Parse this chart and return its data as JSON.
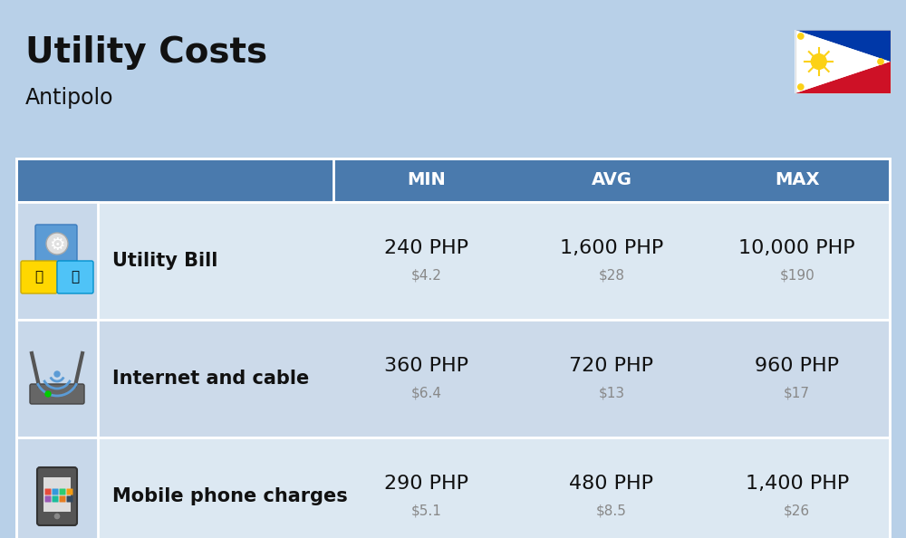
{
  "title": "Utility Costs",
  "subtitle": "Antipolo",
  "background_color": "#b8d0e8",
  "header_color": "#4a7aad",
  "header_text_color": "#ffffff",
  "row_colors": [
    "#dce8f2",
    "#ccdaea"
  ],
  "icon_col_color": "#c8d8ea",
  "columns": [
    "MIN",
    "AVG",
    "MAX"
  ],
  "rows": [
    {
      "label": "Utility Bill",
      "min_php": "240 PHP",
      "min_usd": "$4.2",
      "avg_php": "1,600 PHP",
      "avg_usd": "$28",
      "max_php": "10,000 PHP",
      "max_usd": "$190"
    },
    {
      "label": "Internet and cable",
      "min_php": "360 PHP",
      "min_usd": "$6.4",
      "avg_php": "720 PHP",
      "avg_usd": "$13",
      "max_php": "960 PHP",
      "max_usd": "$17"
    },
    {
      "label": "Mobile phone charges",
      "min_php": "290 PHP",
      "min_usd": "$5.1",
      "avg_php": "480 PHP",
      "avg_usd": "$8.5",
      "max_php": "1,400 PHP",
      "max_usd": "$26"
    }
  ],
  "php_fontsize": 16,
  "usd_fontsize": 11,
  "label_fontsize": 15,
  "header_fontsize": 14,
  "title_fontsize": 28,
  "subtitle_fontsize": 17,
  "usd_color": "#888888",
  "text_color": "#111111"
}
